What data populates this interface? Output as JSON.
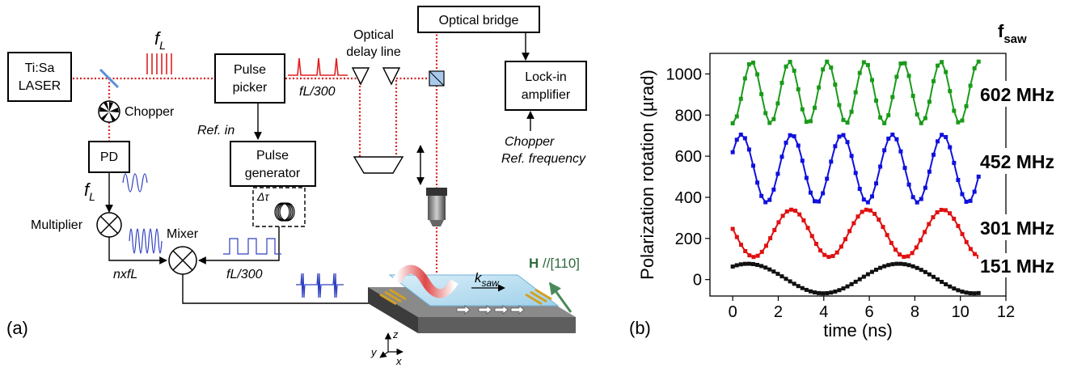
{
  "panel_a": {
    "label": "(a)",
    "laser_line1": "Ti:Sa",
    "laser_line2": "LASER",
    "fL_main": "f",
    "fL_sub": "L",
    "chopper": "Chopper",
    "pd": "PD",
    "fL_pd_main": "f",
    "fL_pd_sub": "L",
    "multiplier": "Multiplier",
    "nxfL": "nxfL",
    "pulse_picker_line1": "Pulse",
    "pulse_picker_line2": "picker",
    "fL300_top": "fL/300",
    "ref_in": "Ref. in",
    "pulse_gen_line1": "Pulse",
    "pulse_gen_line2": "generator",
    "delta_tau": "Δτ",
    "mixer": "Mixer",
    "fL300_bottom": "fL/300",
    "delay_line1": "Optical",
    "delay_line2": "delay line",
    "optical_bridge": "Optical bridge",
    "lockin_line1": "Lock-in",
    "lockin_line2": "amplifier",
    "chopper_ref1": "Chopper",
    "chopper_ref2": "Ref. frequency",
    "ksaw_main": "k",
    "ksaw_sub": "saw",
    "h_field_bold": "H",
    "h_field_rest": " //[110]",
    "axis_z": "z",
    "axis_y": "y",
    "axis_x": "x"
  },
  "panel_b": {
    "label": "(b)",
    "fsaw_main": "f",
    "fsaw_sub": "saw"
  },
  "chart_data": {
    "type": "scatter",
    "xlabel": "time (ns)",
    "ylabel": "Polarization rotation (µrad)",
    "xlim": [
      -1,
      12
    ],
    "ylim": [
      -80,
      1100
    ],
    "xticks": [
      0,
      2,
      4,
      6,
      8,
      10,
      12
    ],
    "yticks": [
      0,
      200,
      400,
      600,
      800,
      1000
    ],
    "grid": false,
    "series": [
      {
        "name": "602 MHz",
        "color": "#1a9a1a",
        "offset": 910,
        "amplitude": 150,
        "freq_ghz": 0.602,
        "phase": -0.5,
        "x_start": 0,
        "x_end": 10.8
      },
      {
        "name": "452 MHz",
        "color": "#1010dd",
        "offset": 540,
        "amplitude": 165,
        "freq_ghz": 0.452,
        "phase": -0.17,
        "x_start": 0,
        "x_end": 10.8
      },
      {
        "name": "301 MHz",
        "color": "#e01010",
        "offset": 225,
        "amplitude": 115,
        "freq_ghz": 0.301,
        "phase": -0.78,
        "x_start": 0,
        "x_end": 11.0
      },
      {
        "name": "151 MHz",
        "color": "#111111",
        "offset": 5,
        "amplitude": 72,
        "freq_ghz": 0.151,
        "phase": -0.1,
        "x_start": 0,
        "x_end": 10.8
      }
    ]
  }
}
